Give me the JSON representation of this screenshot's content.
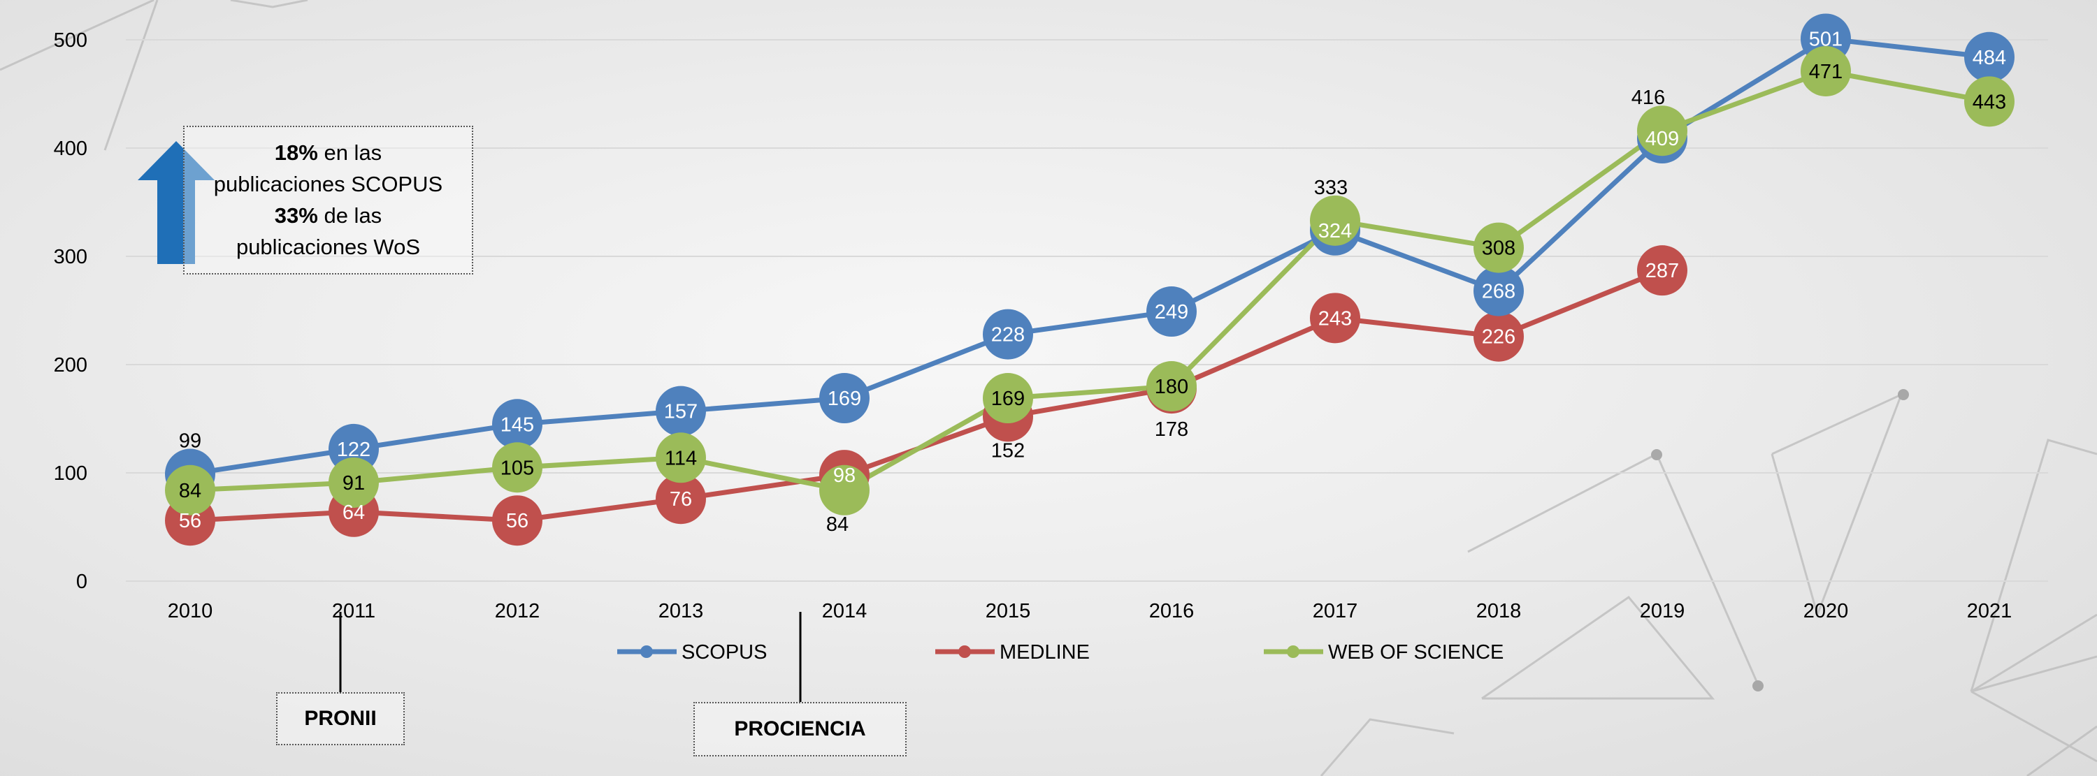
{
  "chart_data": {
    "type": "line",
    "categories": [
      "2010",
      "2011",
      "2012",
      "2013",
      "2014",
      "2015",
      "2016",
      "2017",
      "2018",
      "2019",
      "2020",
      "2021"
    ],
    "ylim": [
      0,
      500
    ],
    "yticks": [
      0,
      100,
      200,
      300,
      400,
      500
    ],
    "legend_position": "bottom",
    "series": [
      {
        "name": "SCOPUS",
        "color": "#4F81BD",
        "values": [
          99,
          122,
          145,
          157,
          169,
          228,
          249,
          324,
          268,
          409,
          501,
          484
        ],
        "labels": [
          "99",
          "122",
          "145",
          "157",
          "169",
          "228",
          "249",
          "324",
          "268",
          "409",
          "501",
          "484"
        ]
      },
      {
        "name": "MEDLINE",
        "color": "#C0504D",
        "values": [
          56,
          64,
          56,
          76,
          98,
          152,
          178,
          243,
          226,
          287,
          null,
          null
        ],
        "labels": [
          "56",
          "64",
          "56",
          "76",
          "98",
          "152",
          "178",
          "243",
          "226",
          "287",
          null,
          null
        ]
      },
      {
        "name": "WEB OF SCIENCE",
        "color": "#9BBB59",
        "values": [
          84,
          91,
          105,
          114,
          84,
          169,
          180,
          333,
          308,
          416,
          471,
          443
        ],
        "labels": [
          "84",
          "91",
          "105",
          "114",
          "84",
          "169",
          "180",
          "333",
          "308",
          "416",
          "471",
          "443"
        ]
      }
    ],
    "annotations": [
      {
        "text": "18%",
        "rest": " en las"
      },
      {
        "text": "publicaciones SCOPUS"
      },
      {
        "text": "33%",
        "rest": " de las"
      },
      {
        "text": "publicaciones WoS"
      },
      {
        "text": "PRONII"
      },
      {
        "text": "PROCIENCIA"
      }
    ]
  },
  "colors": {
    "arrow": "#1F6FB7",
    "axis_line": "#d9d9d9"
  },
  "notes": {
    "line1_bold": "18%",
    "line1_rest": " en las",
    "line2": "publicaciones SCOPUS",
    "line3_bold": "33%",
    "line3_rest": " de las",
    "line4": "publicaciones WoS"
  },
  "markers": {
    "pronii": "PRONII",
    "prociencia": "PROCIENCIA"
  }
}
